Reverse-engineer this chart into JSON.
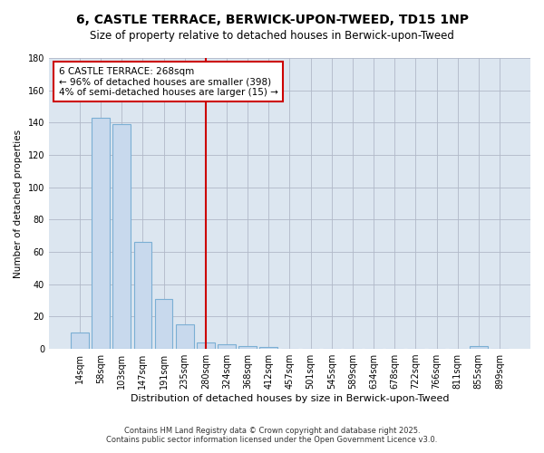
{
  "title": "6, CASTLE TERRACE, BERWICK-UPON-TWEED, TD15 1NP",
  "subtitle": "Size of property relative to detached houses in Berwick-upon-Tweed",
  "xlabel": "Distribution of detached houses by size in Berwick-upon-Tweed",
  "ylabel": "Number of detached properties",
  "categories": [
    "14sqm",
    "58sqm",
    "103sqm",
    "147sqm",
    "191sqm",
    "235sqm",
    "280sqm",
    "324sqm",
    "368sqm",
    "412sqm",
    "457sqm",
    "501sqm",
    "545sqm",
    "589sqm",
    "634sqm",
    "678sqm",
    "722sqm",
    "766sqm",
    "811sqm",
    "855sqm",
    "899sqm"
  ],
  "values": [
    10,
    143,
    139,
    66,
    31,
    15,
    4,
    3,
    2,
    1,
    0,
    0,
    0,
    0,
    0,
    0,
    0,
    0,
    0,
    2,
    0
  ],
  "bar_color": "#c8d9ed",
  "bar_edge_color": "#7bafd4",
  "vline_x": 6.0,
  "vline_color": "#cc0000",
  "annotation_line1": "6 CASTLE TERRACE: 268sqm",
  "annotation_line2": "← 96% of detached houses are smaller (398)",
  "annotation_line3": "4% of semi-detached houses are larger (15) →",
  "annotation_box_color": "#ffffff",
  "annotation_box_edge_color": "#cc0000",
  "ylim": [
    0,
    180
  ],
  "yticks": [
    0,
    20,
    40,
    60,
    80,
    100,
    120,
    140,
    160,
    180
  ],
  "fig_bg_color": "#ffffff",
  "plot_bg_color": "#dce6f0",
  "title_fontsize": 10,
  "subtitle_fontsize": 8.5,
  "xlabel_fontsize": 8,
  "ylabel_fontsize": 7.5,
  "tick_fontsize": 7,
  "annotation_fontsize": 7.5,
  "footer_fontsize": 6,
  "footer_line1": "Contains HM Land Registry data © Crown copyright and database right 2025.",
  "footer_line2": "Contains public sector information licensed under the Open Government Licence v3.0."
}
